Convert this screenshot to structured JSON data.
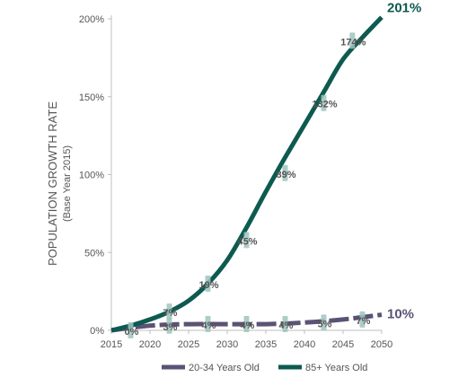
{
  "chart_data": {
    "type": "line",
    "ylabel": "POPULATION GROWTH RATE",
    "ylabel_sub": "(Base Year 2015)",
    "xlim": [
      2015,
      2050
    ],
    "ylim": [
      0,
      200
    ],
    "x_ticks": [
      2015,
      2020,
      2025,
      2030,
      2035,
      2040,
      2045,
      2050
    ],
    "x_tick_labels": [
      "2015",
      "2020",
      "2025",
      "2030",
      "2035",
      "2040",
      "2045",
      "2050"
    ],
    "y_ticks": [
      0,
      50,
      100,
      150,
      200
    ],
    "y_tick_labels": [
      "0%",
      "50%",
      "100%",
      "150%",
      "200%"
    ],
    "legend_position": "bottom",
    "grid": false,
    "series": [
      {
        "name": "20-34 Years Old",
        "color": "#5b5275",
        "style": "dashed",
        "x": [
          2015,
          2020,
          2025,
          2030,
          2035,
          2040,
          2045,
          2050
        ],
        "y": [
          0,
          3,
          4,
          4,
          4,
          5,
          7,
          10
        ],
        "labels": [
          {
            "x": 2017.5,
            "y": 0,
            "text": "0%"
          },
          {
            "x": 2022.5,
            "y": 3,
            "text": "3%"
          },
          {
            "x": 2027.5,
            "y": 4,
            "text": "4%"
          },
          {
            "x": 2032.5,
            "y": 4,
            "text": "4%"
          },
          {
            "x": 2037.5,
            "y": 4,
            "text": "4%"
          },
          {
            "x": 2042.5,
            "y": 5,
            "text": "5%"
          },
          {
            "x": 2047.5,
            "y": 7,
            "text": "7%"
          }
        ],
        "end_label": "10%"
      },
      {
        "name": "85+ Years Old",
        "color": "#0d5a50",
        "style": "solid",
        "x": [
          2015,
          2017.5,
          2020,
          2022.5,
          2025,
          2027.5,
          2030,
          2032.5,
          2035,
          2037.5,
          2040,
          2042.5,
          2045,
          2047.5,
          2050
        ],
        "y": [
          0,
          3,
          7,
          12,
          19,
          30,
          45,
          66,
          89,
          111,
          132,
          153,
          174,
          188,
          201
        ],
        "labels": [
          {
            "x": 2022.5,
            "y": 12,
            "text": "7%"
          },
          {
            "x": 2027.5,
            "y": 30,
            "text": "19%"
          },
          {
            "x": 2032.5,
            "y": 58,
            "text": "45%"
          },
          {
            "x": 2037.5,
            "y": 101,
            "text": "89%"
          },
          {
            "x": 2042.5,
            "y": 146,
            "text": "132%"
          },
          {
            "x": 2046.2,
            "y": 186,
            "text": "174%"
          }
        ],
        "end_label": "201%"
      }
    ]
  }
}
